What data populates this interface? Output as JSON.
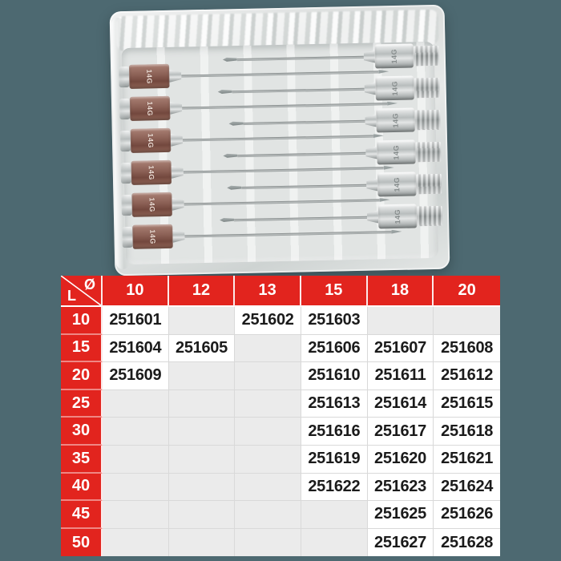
{
  "photo": {
    "alt": "Pack of 14G stainless steel veterinary needles in a clear plastic case",
    "left_needles": [
      "14G",
      "14G",
      "14G",
      "14G",
      "14G",
      "14G"
    ],
    "right_needles": [
      "14G",
      "14G",
      "14G",
      "14G",
      "14G",
      "14G"
    ],
    "hub_color": "#8a5f54"
  },
  "table": {
    "corner": {
      "diameter_symbol": "Ø",
      "length_symbol": "L"
    },
    "columns": [
      "10",
      "12",
      "13",
      "15",
      "18",
      "20"
    ],
    "rows": [
      {
        "label": "10",
        "cells": [
          "251601",
          "",
          "251602",
          "251603",
          "",
          ""
        ]
      },
      {
        "label": "15",
        "cells": [
          "251604",
          "251605",
          "",
          "251606",
          "251607",
          "251608"
        ]
      },
      {
        "label": "20",
        "cells": [
          "251609",
          "",
          "",
          "251610",
          "251611",
          "251612"
        ]
      },
      {
        "label": "25",
        "cells": [
          "",
          "",
          "",
          "251613",
          "251614",
          "251615"
        ]
      },
      {
        "label": "30",
        "cells": [
          "",
          "",
          "",
          "251616",
          "251617",
          "251618"
        ]
      },
      {
        "label": "35",
        "cells": [
          "",
          "",
          "",
          "251619",
          "251620",
          "251621"
        ]
      },
      {
        "label": "40",
        "cells": [
          "",
          "",
          "",
          "251622",
          "251623",
          "251624"
        ]
      },
      {
        "label": "45",
        "cells": [
          "",
          "",
          "",
          "",
          "251625",
          "251626"
        ]
      },
      {
        "label": "50",
        "cells": [
          "",
          "",
          "",
          "",
          "251627",
          "251628"
        ]
      }
    ],
    "colors": {
      "header_red": "#e2241e",
      "empty_cell_gray": "#ebebeb",
      "filled_cell_white": "#ffffff",
      "page_background": "#4d6971"
    }
  }
}
